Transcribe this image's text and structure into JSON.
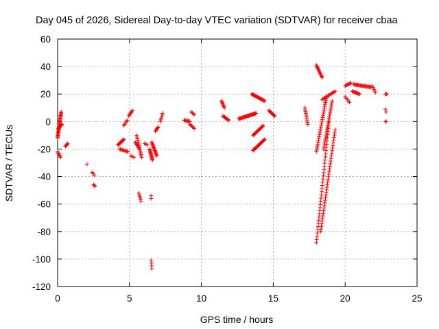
{
  "chart_data": {
    "type": "scatter",
    "title": "Day 045 of 2026, Sidereal Day-to-day VTEC variation (SDTVAR) for receiver cbaa",
    "xlabel": "GPS time / hours",
    "ylabel": "SDTVAR / TECUs",
    "xlim": [
      0,
      25
    ],
    "ylim": [
      -120,
      60
    ],
    "xticks": [
      "0",
      "5",
      "10",
      "15",
      "20",
      "25"
    ],
    "yticks": [
      "-120",
      "-100",
      "-80",
      "-60",
      "-40",
      "-20",
      "0",
      "20",
      "40",
      "60"
    ],
    "grid": true,
    "marker": "plus",
    "series_color": "#ff0000",
    "segments": [
      {
        "x0": 0.0,
        "y0": -12,
        "x1": 0.25,
        "y1": 7,
        "n": 30
      },
      {
        "x0": 0.05,
        "y0": -5,
        "x1": 0.3,
        "y1": -2,
        "n": 10
      },
      {
        "x0": 0.0,
        "y0": -22,
        "x1": 0.2,
        "y1": -26,
        "n": 6
      },
      {
        "x0": 0.55,
        "y0": -18,
        "x1": 0.7,
        "y1": -16,
        "n": 5
      },
      {
        "x0": 2.05,
        "y0": -31,
        "x1": 2.05,
        "y1": -31,
        "n": 1
      },
      {
        "x0": 2.4,
        "y0": -37,
        "x1": 2.55,
        "y1": -39,
        "n": 3
      },
      {
        "x0": 2.5,
        "y0": -46,
        "x1": 2.6,
        "y1": -47,
        "n": 3
      },
      {
        "x0": 4.2,
        "y0": -17,
        "x1": 4.6,
        "y1": -13,
        "n": 14
      },
      {
        "x0": 4.3,
        "y0": -20,
        "x1": 4.9,
        "y1": -22,
        "n": 10
      },
      {
        "x0": 4.6,
        "y0": -3,
        "x1": 4.85,
        "y1": 1,
        "n": 5
      },
      {
        "x0": 4.95,
        "y0": 4,
        "x1": 5.2,
        "y1": 8,
        "n": 6
      },
      {
        "x0": 5.1,
        "y0": -25,
        "x1": 5.3,
        "y1": -26,
        "n": 3
      },
      {
        "x0": 5.4,
        "y0": -15,
        "x1": 5.7,
        "y1": -20,
        "n": 8
      },
      {
        "x0": 5.5,
        "y0": -10,
        "x1": 5.8,
        "y1": -24,
        "n": 12
      },
      {
        "x0": 5.65,
        "y0": -52,
        "x1": 5.8,
        "y1": -58,
        "n": 6
      },
      {
        "x0": 5.8,
        "y0": -25,
        "x1": 5.85,
        "y1": -26,
        "n": 2
      },
      {
        "x0": 6.05,
        "y0": -16,
        "x1": 6.25,
        "y1": -17,
        "n": 3
      },
      {
        "x0": 6.4,
        "y0": -20,
        "x1": 6.6,
        "y1": -28,
        "n": 14
      },
      {
        "x0": 6.55,
        "y0": -15,
        "x1": 6.9,
        "y1": -25,
        "n": 16
      },
      {
        "x0": 6.5,
        "y0": -54,
        "x1": 6.5,
        "y1": -56,
        "n": 2
      },
      {
        "x0": 6.5,
        "y0": -101,
        "x1": 6.55,
        "y1": -107,
        "n": 4
      },
      {
        "x0": 6.8,
        "y0": -7,
        "x1": 7.0,
        "y1": -4,
        "n": 6
      },
      {
        "x0": 7.15,
        "y0": 0,
        "x1": 7.3,
        "y1": 6,
        "n": 6
      },
      {
        "x0": 8.8,
        "y0": 1,
        "x1": 9.2,
        "y1": 0,
        "n": 8
      },
      {
        "x0": 9.2,
        "y0": -2,
        "x1": 9.5,
        "y1": -5,
        "n": 6
      },
      {
        "x0": 9.3,
        "y0": 7,
        "x1": 9.5,
        "y1": 5,
        "n": 4
      },
      {
        "x0": 11.4,
        "y0": 15,
        "x1": 11.6,
        "y1": 10,
        "n": 8
      },
      {
        "x0": 11.5,
        "y0": 4,
        "x1": 11.9,
        "y1": 1,
        "n": 8
      },
      {
        "x0": 12.6,
        "y0": 2,
        "x1": 13.8,
        "y1": 6,
        "n": 30
      },
      {
        "x0": 13.5,
        "y0": 20,
        "x1": 14.4,
        "y1": 15,
        "n": 20
      },
      {
        "x0": 13.6,
        "y0": -10,
        "x1": 14.3,
        "y1": -3,
        "n": 16
      },
      {
        "x0": 13.6,
        "y0": -21,
        "x1": 14.4,
        "y1": -13,
        "n": 18
      },
      {
        "x0": 14.7,
        "y0": 8,
        "x1": 15.1,
        "y1": 4,
        "n": 10
      },
      {
        "x0": 17.2,
        "y0": 10,
        "x1": 17.4,
        "y1": -2,
        "n": 10
      },
      {
        "x0": 18.0,
        "y0": 41,
        "x1": 18.4,
        "y1": 32,
        "n": 12
      },
      {
        "x0": 18.0,
        "y0": -22,
        "x1": 18.7,
        "y1": 18,
        "n": 30
      },
      {
        "x0": 18.0,
        "y0": -88,
        "x1": 18.9,
        "y1": 2,
        "n": 40
      },
      {
        "x0": 18.3,
        "y0": -80,
        "x1": 19.3,
        "y1": -6,
        "n": 40
      },
      {
        "x0": 18.5,
        "y0": -20,
        "x1": 19.1,
        "y1": 15,
        "n": 25
      },
      {
        "x0": 18.4,
        "y0": 16,
        "x1": 19.3,
        "y1": 22,
        "n": 14
      },
      {
        "x0": 20.0,
        "y0": 26,
        "x1": 20.4,
        "y1": 28,
        "n": 8
      },
      {
        "x0": 20.0,
        "y0": 18,
        "x1": 20.3,
        "y1": 14,
        "n": 5
      },
      {
        "x0": 20.5,
        "y0": 22,
        "x1": 21.0,
        "y1": 20,
        "n": 10
      },
      {
        "x0": 20.6,
        "y0": 27,
        "x1": 21.8,
        "y1": 25,
        "n": 22
      },
      {
        "x0": 21.9,
        "y0": 26,
        "x1": 22.1,
        "y1": 21,
        "n": 5
      },
      {
        "x0": 22.8,
        "y0": 20,
        "x1": 22.9,
        "y1": 20,
        "n": 3
      },
      {
        "x0": 22.8,
        "y0": 9,
        "x1": 22.85,
        "y1": 7,
        "n": 2
      },
      {
        "x0": 22.8,
        "y0": 0,
        "x1": 22.85,
        "y1": 0,
        "n": 2
      }
    ]
  }
}
